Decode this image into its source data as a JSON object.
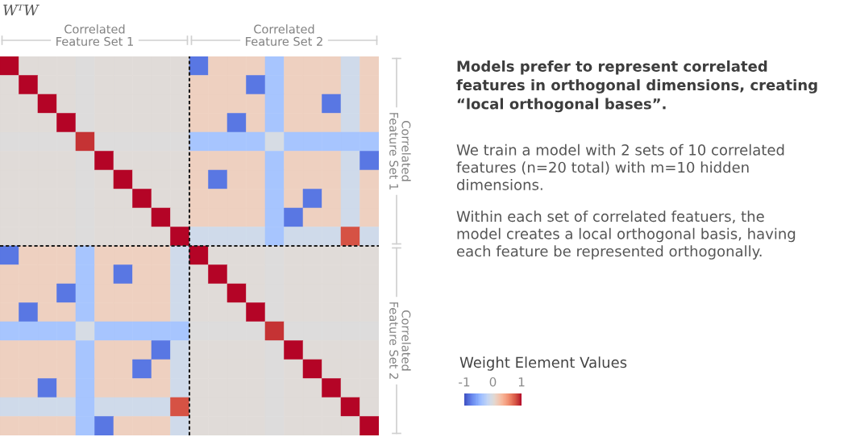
{
  "chart_data": [
    {
      "type": "heatmap",
      "title": "WᵀW",
      "clabel": "Weight Element Values",
      "categories": [
        null,
        null,
        null,
        null,
        null,
        null,
        null,
        null,
        null,
        null,
        null,
        null,
        null,
        null,
        null,
        null,
        null,
        null,
        null,
        null
      ],
      "y_categories": [
        null,
        null,
        null,
        null,
        null,
        null,
        null,
        null,
        null,
        null,
        null,
        null,
        null,
        null,
        null,
        null,
        null,
        null,
        null,
        null
      ],
      "cells": [
        [
          1,
          0.03,
          0.03,
          0.03,
          0,
          0.03,
          0.03,
          0.03,
          0.03,
          0.03,
          -0.8,
          0.15,
          0.15,
          0.15,
          -0.35,
          0.15,
          0.15,
          0.15,
          -0.1,
          0.15
        ],
        [
          0.03,
          1,
          0.03,
          0.03,
          0,
          0.03,
          0.03,
          0.03,
          0.03,
          0.03,
          0.15,
          0.15,
          0.15,
          -0.8,
          -0.35,
          0.15,
          0.15,
          0.15,
          -0.1,
          0.15
        ],
        [
          0.03,
          0.03,
          1,
          0.03,
          0,
          0.03,
          0.03,
          0.03,
          0.03,
          0.03,
          0.15,
          0.15,
          0.15,
          0.15,
          -0.35,
          0.15,
          0.15,
          -0.8,
          -0.1,
          0.15
        ],
        [
          0.03,
          0.03,
          0.03,
          1,
          0,
          0.03,
          0.03,
          0.03,
          0.03,
          0.03,
          0.15,
          0.15,
          -0.8,
          0.15,
          -0.35,
          0.15,
          0.15,
          0.15,
          -0.1,
          0.15
        ],
        [
          0,
          0,
          0,
          0,
          0.9,
          0,
          0,
          0,
          0,
          0,
          -0.35,
          -0.35,
          -0.35,
          -0.35,
          -0.05,
          -0.35,
          -0.35,
          -0.35,
          -0.35,
          -0.35
        ],
        [
          0.03,
          0.03,
          0.03,
          0.03,
          0,
          1,
          0.03,
          0.03,
          0.03,
          0.03,
          0.15,
          0.15,
          0.15,
          0.15,
          -0.35,
          0.15,
          0.15,
          0.15,
          -0.1,
          -0.8
        ],
        [
          0.03,
          0.03,
          0.03,
          0.03,
          0,
          0.03,
          1,
          0.03,
          0.03,
          0.03,
          0.15,
          -0.8,
          0.15,
          0.15,
          -0.35,
          0.15,
          0.15,
          0.15,
          -0.1,
          0.15
        ],
        [
          0.03,
          0.03,
          0.03,
          0.03,
          0,
          0.03,
          0.03,
          1,
          0.03,
          0.03,
          0.15,
          0.15,
          0.15,
          0.15,
          -0.35,
          0.15,
          -0.8,
          0.15,
          -0.1,
          0.15
        ],
        [
          0.03,
          0.03,
          0.03,
          0.03,
          0,
          0.03,
          0.03,
          0.03,
          1,
          0.03,
          0.15,
          0.15,
          0.15,
          0.15,
          -0.35,
          -0.8,
          0.15,
          0.15,
          -0.1,
          0.15
        ],
        [
          0.03,
          0.03,
          0.03,
          0.03,
          0,
          0.03,
          0.03,
          0.03,
          0.03,
          1,
          -0.1,
          -0.1,
          -0.1,
          -0.1,
          -0.35,
          -0.1,
          -0.1,
          -0.1,
          0.8,
          -0.1
        ],
        [
          -0.8,
          0.15,
          0.15,
          0.15,
          -0.35,
          0.15,
          0.15,
          0.15,
          0.15,
          -0.1,
          1,
          0.03,
          0.03,
          0.03,
          0,
          0.03,
          0.03,
          0.03,
          0.03,
          0.03
        ],
        [
          0.15,
          0.15,
          0.15,
          0.15,
          -0.35,
          0.15,
          -0.8,
          0.15,
          0.15,
          -0.1,
          0.03,
          1,
          0.03,
          0.03,
          0,
          0.03,
          0.03,
          0.03,
          0.03,
          0.03
        ],
        [
          0.15,
          0.15,
          0.15,
          -0.8,
          -0.35,
          0.15,
          0.15,
          0.15,
          0.15,
          -0.1,
          0.03,
          0.03,
          1,
          0.03,
          0,
          0.03,
          0.03,
          0.03,
          0.03,
          0.03
        ],
        [
          0.15,
          -0.8,
          0.15,
          0.15,
          -0.35,
          0.15,
          0.15,
          0.15,
          0.15,
          -0.1,
          0.03,
          0.03,
          0.03,
          1,
          0,
          0.03,
          0.03,
          0.03,
          0.03,
          0.03
        ],
        [
          -0.35,
          -0.35,
          -0.35,
          -0.35,
          -0.05,
          -0.35,
          -0.35,
          -0.35,
          -0.35,
          -0.35,
          0,
          0,
          0,
          0,
          0.9,
          0,
          0,
          0,
          0,
          0
        ],
        [
          0.15,
          0.15,
          0.15,
          0.15,
          -0.35,
          0.15,
          0.15,
          0.15,
          -0.8,
          -0.1,
          0.03,
          0.03,
          0.03,
          0.03,
          0,
          1,
          0.03,
          0.03,
          0.03,
          0.03
        ],
        [
          0.15,
          0.15,
          0.15,
          0.15,
          -0.35,
          0.15,
          0.15,
          -0.8,
          0.15,
          -0.1,
          0.03,
          0.03,
          0.03,
          0.03,
          0,
          0.03,
          1,
          0.03,
          0.03,
          0.03
        ],
        [
          0.15,
          0.15,
          -0.8,
          0.15,
          -0.35,
          0.15,
          0.15,
          0.15,
          0.15,
          -0.1,
          0.03,
          0.03,
          0.03,
          0.03,
          0,
          0.03,
          0.03,
          1,
          0.03,
          0.03
        ],
        [
          -0.1,
          -0.1,
          -0.1,
          -0.1,
          -0.35,
          -0.1,
          -0.1,
          -0.1,
          -0.1,
          0.8,
          0.03,
          0.03,
          0.03,
          0.03,
          0,
          0.03,
          0.03,
          0.03,
          1,
          0.03
        ],
        [
          0.15,
          0.15,
          0.15,
          0.15,
          -0.35,
          -0.8,
          0.15,
          0.15,
          0.15,
          -0.1,
          0.03,
          0.03,
          0.03,
          0.03,
          0,
          0.03,
          0.03,
          0.03,
          0.03,
          1
        ]
      ],
      "clim": [
        -1,
        1
      ],
      "cticks": [
        -1,
        0,
        1
      ],
      "annotations": [
        "Correlated\nFeature Set 1",
        "Correlated\nFeature Set 2",
        "Correlated\nFeature Set 1",
        "Correlated\nFeature Set 2"
      ]
    },
    {
      "type": "other",
      "title": "Models prefer to represent correlated\nfeatures in orthogonal dimensions, creating\n“local orthogonal bases”.",
      "annotations": [
        "We train a model with 2 sets of 10 correlated\nfeatures (n=20 total) with m=10 hidden\ndimensions.",
        "Within each set of correlated featuers, the\nmodel creates a local orthogonal basis, having\neach feature be represented orthogonally."
      ]
    }
  ]
}
